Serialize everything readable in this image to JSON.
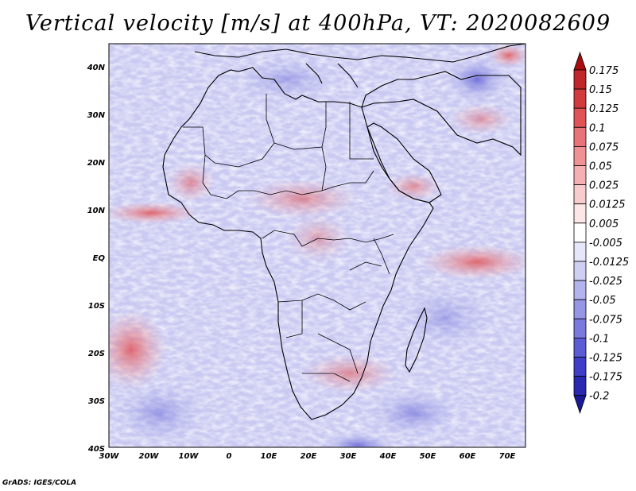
{
  "title": "Vertical velocity [m/s] at 400hPa, VT: 2020082609",
  "credit": "GrADS: IGES/COLA",
  "map": {
    "lat_ticks": [
      "40N",
      "30N",
      "20N",
      "10N",
      "EQ",
      "10S",
      "20S",
      "30S",
      "40S"
    ],
    "lon_ticks": [
      "30W",
      "20W",
      "10W",
      "0",
      "10E",
      "20E",
      "30E",
      "40E",
      "50E",
      "60E",
      "70E"
    ],
    "lat_range": [
      -40,
      45
    ],
    "lon_range": [
      -30,
      75
    ],
    "field": "Vertical velocity",
    "units": "m/s",
    "level": "400hPa",
    "valid_time": "2020082609"
  },
  "colorbar": {
    "levels": [
      "0.175",
      "0.15",
      "0.125",
      "0.1",
      "0.075",
      "0.05",
      "0.025",
      "0.0125",
      "0.005",
      "-0.005",
      "-0.0125",
      "-0.025",
      "-0.05",
      "-0.075",
      "-0.1",
      "-0.125",
      "-0.175",
      "-0.2"
    ],
    "colors": [
      "#a80c0c",
      "#c0262a",
      "#d33a3e",
      "#e05458",
      "#e8747a",
      "#ef9296",
      "#f4b0b3",
      "#f8cccd",
      "#fce6e6",
      "#ffffff",
      "#e6e6fa",
      "#cfcff4",
      "#b3b3ee",
      "#9696e6",
      "#7a7ade",
      "#5c5cd4",
      "#3e3ec8",
      "#2828b0",
      "#1a1a96"
    ]
  },
  "icons": {
    "colorbar_arrows": "triangle-arrow-icon"
  }
}
